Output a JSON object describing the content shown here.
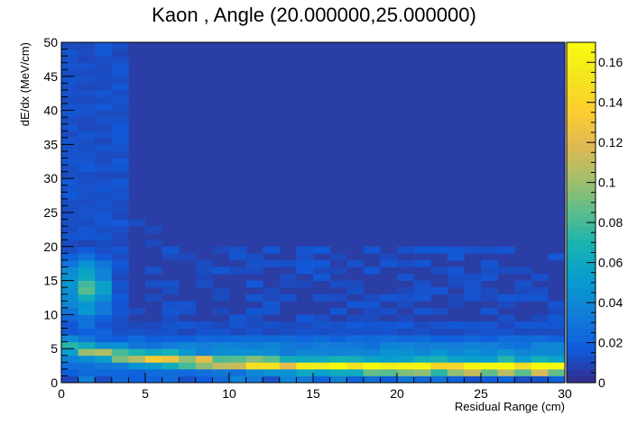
{
  "chart_data": {
    "type": "heatmap",
    "title": "Kaon , Angle (20.000000,25.000000)",
    "xlabel": "Residual Range (cm)",
    "ylabel": "dE/dx (MeV/cm)",
    "xlim": [
      0,
      30
    ],
    "ylim": [
      0,
      50
    ],
    "zlim": [
      0,
      0.17
    ],
    "x_bins": 30,
    "y_bins": 50,
    "x_ticks": [
      0,
      5,
      10,
      15,
      20,
      25,
      30
    ],
    "y_ticks": [
      0,
      5,
      10,
      15,
      20,
      25,
      30,
      35,
      40,
      45,
      50
    ],
    "z_ticks": [
      0,
      0.02,
      0.04,
      0.06,
      0.08,
      0.1,
      0.12,
      0.14,
      0.16
    ],
    "colormap": "parula",
    "grid": false,
    "legend": "colorbar-right",
    "colors": {
      "empty_bin": "#2a3ea6",
      "frame": "#000000",
      "background": "#ffffff"
    }
  }
}
